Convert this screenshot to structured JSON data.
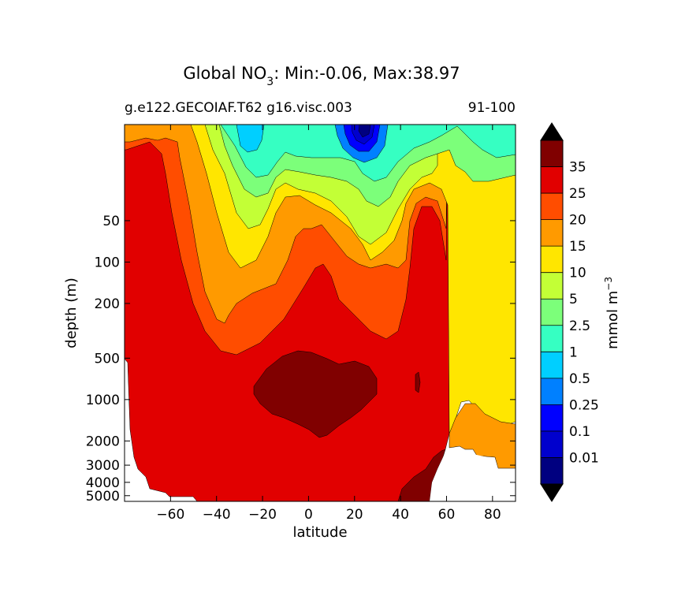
{
  "chart_data": {
    "type": "heatmap",
    "title_prefix": "Global NO",
    "title_subscript": "3",
    "title_suffix": ": Min:-0.06, Max:38.97",
    "subtitle_left": "g.e122.GECOIAF.T62 g16.visc.003",
    "subtitle_right": "91-100",
    "xlabel": "latitude",
    "ylabel": "depth (m)",
    "xlim": [
      -80,
      90
    ],
    "ylim": [
      5500,
      10
    ],
    "yscale": "log",
    "x_ticks": [
      -60,
      -40,
      -20,
      0,
      20,
      40,
      60,
      80
    ],
    "x_tick_labels": [
      "−60",
      "−40",
      "−20",
      "0",
      "20",
      "40",
      "60",
      "80"
    ],
    "y_ticks": [
      50,
      100,
      200,
      500,
      1000,
      2000,
      3000,
      4000,
      5000
    ],
    "y_tick_labels": [
      "50",
      "100",
      "200",
      "500",
      "1000",
      "2000",
      "3000",
      "4000",
      "5000"
    ],
    "colorbar": {
      "label": "mmol m",
      "label_exponent": "−3",
      "levels": [
        0.01,
        0.1,
        0.25,
        0.5,
        1,
        2.5,
        5,
        10,
        15,
        20,
        25,
        35
      ],
      "level_labels": [
        "0.01",
        "0.1",
        "0.25",
        "0.5",
        "1",
        "2.5",
        "5",
        "10",
        "15",
        "20",
        "25",
        "35"
      ],
      "colors": [
        "#000080",
        "#0000cd",
        "#0000ff",
        "#0080ff",
        "#00cfff",
        "#36ffc2",
        "#7cff7a",
        "#c3ff36",
        "#ffe600",
        "#ff9a00",
        "#ff4d00",
        "#e10000",
        "#800000"
      ],
      "extend": "both"
    },
    "max_value": 38.97,
    "min_value": -0.06
  }
}
